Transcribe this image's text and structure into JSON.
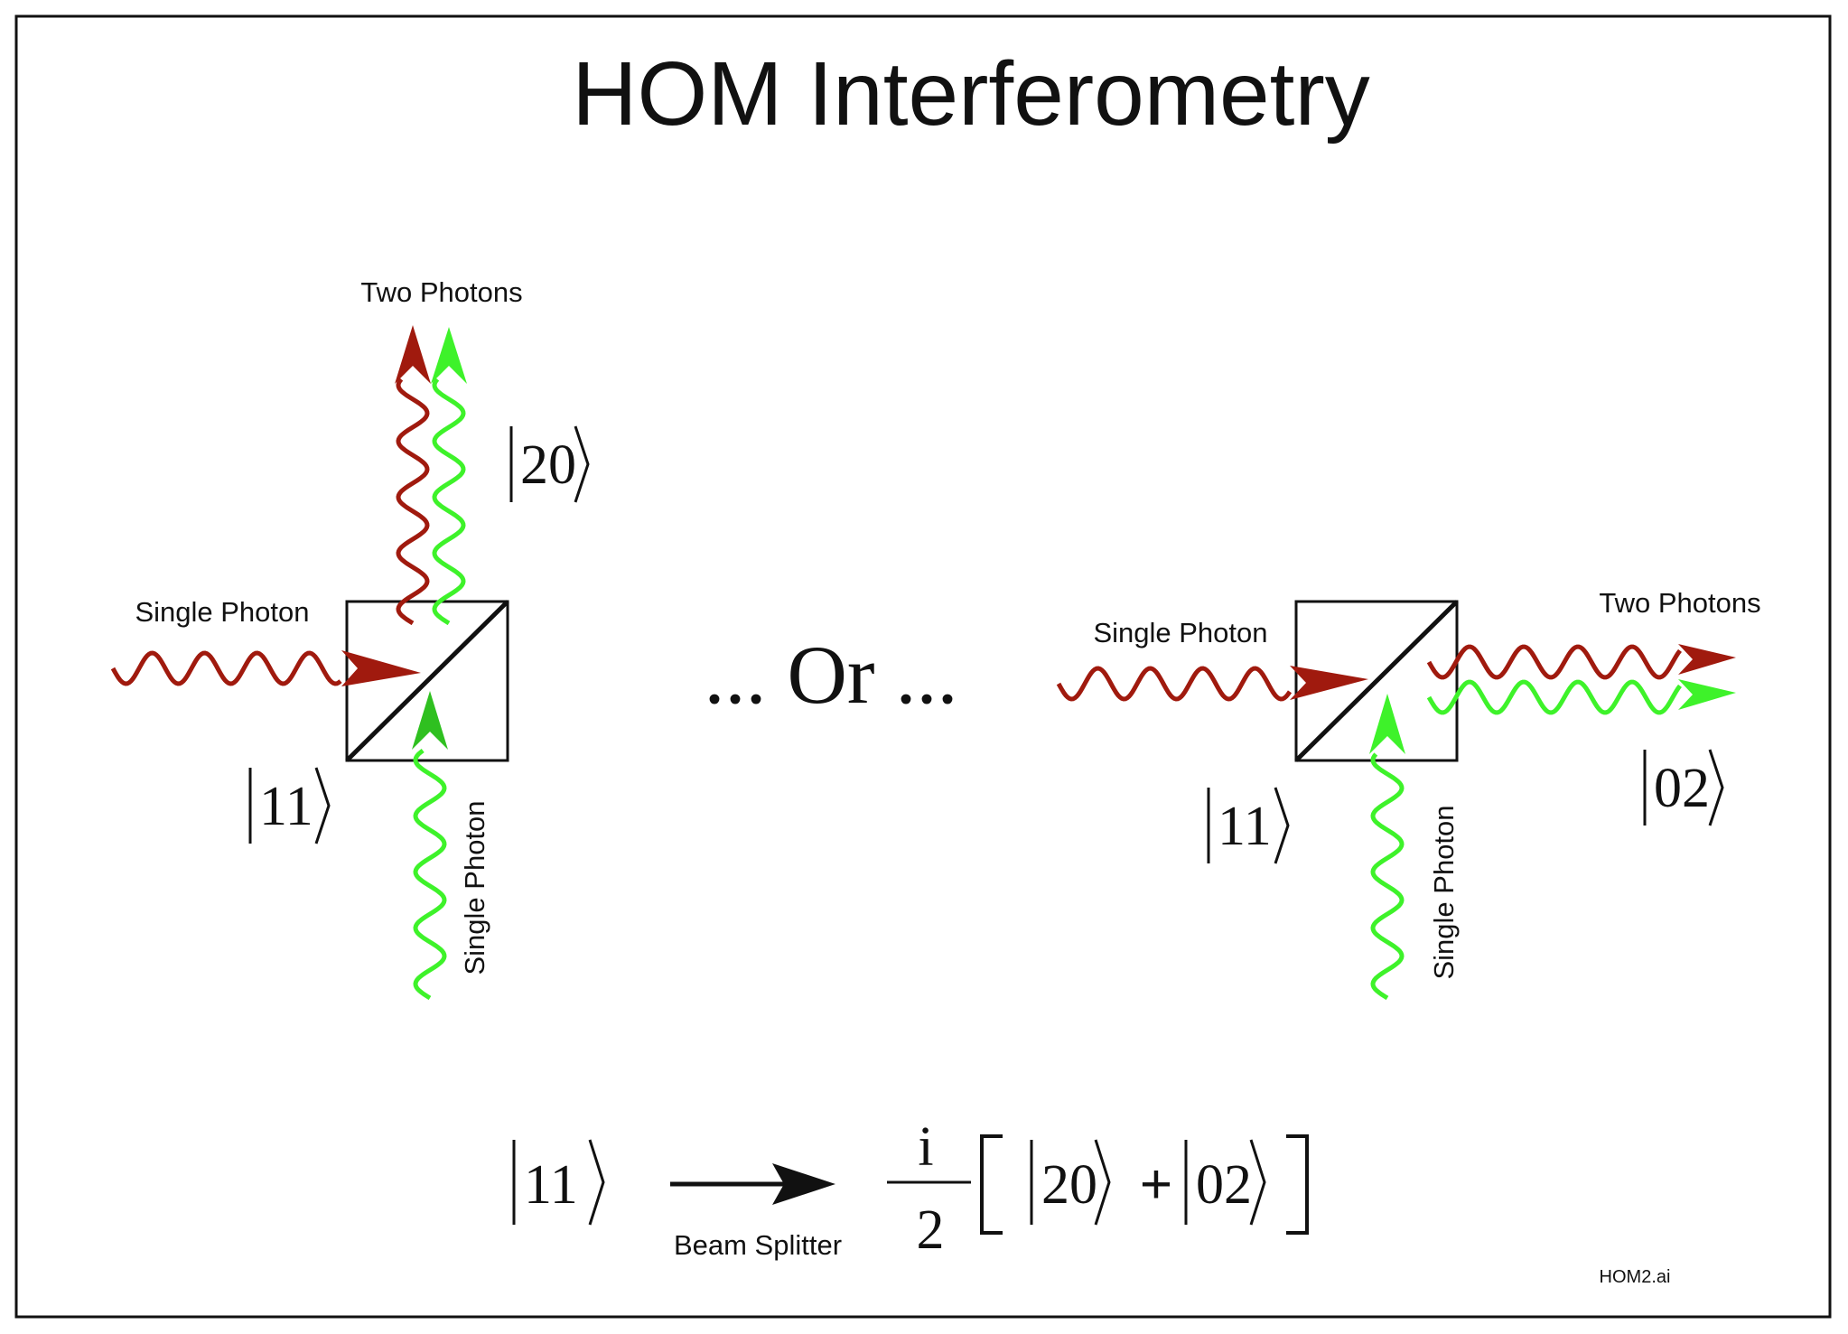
{
  "title": "HOM Interferometry",
  "colors": {
    "photon_a": "#a01a0e",
    "photon_b_light": "#3ef22a",
    "photon_b_dark": "#2fc020",
    "ink": "#111111"
  },
  "left_panel": {
    "top_label": "Two Photons",
    "left_input_label": "Single Photon",
    "bottom_input_label": "Single Photon",
    "output_ket": "20",
    "input_ket": "11"
  },
  "middle": {
    "separator_text": "... Or ..."
  },
  "right_panel": {
    "right_label": "Two Photons",
    "left_input_label": "Single Photon",
    "bottom_input_label": "Single Photon",
    "output_ket": "02",
    "input_ket": "11"
  },
  "equation": {
    "input_ket": "11",
    "arrow_label": "Beam Splitter",
    "numerator": "i",
    "denominator": "2",
    "ket_a": "20",
    "plus": "+",
    "ket_b": "02"
  },
  "file_tag": "HOM2.ai"
}
